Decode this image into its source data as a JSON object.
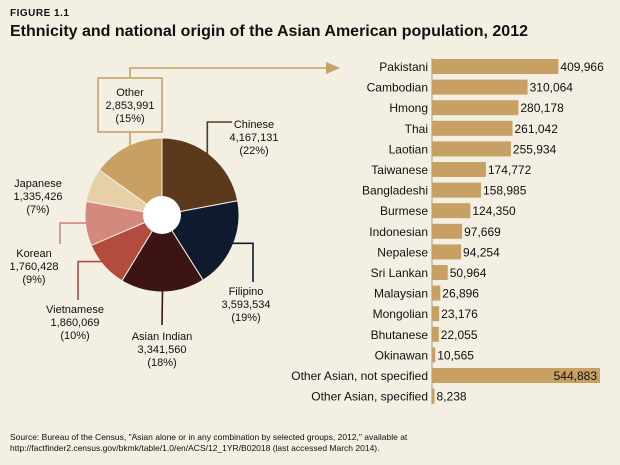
{
  "figure_label": "FIGURE 1.1",
  "title": "Ethnicity and national origin of the Asian American population, 2012",
  "source_lines": [
    "Source: Bureau of the Census, \"Asian alone or in any combination by selected groups, 2012,\" available at",
    "http://factfinder2.census.gov/bkmk/table/1.0/en/ACS/12_1YR/B02018 (last accessed March 2014)."
  ],
  "chart_data": [
    {
      "type": "pie",
      "slices": [
        {
          "name": "Chinese",
          "value": 4167131,
          "value_label": "4,167,131",
          "pct_label": "(22%)",
          "color": "#5a3a1a"
        },
        {
          "name": "Filipino",
          "value": 3593534,
          "value_label": "3,593,534",
          "pct_label": "(19%)",
          "color": "#0f1a2e"
        },
        {
          "name": "Asian Indian",
          "value": 3341560,
          "value_label": "3,341,560",
          "pct_label": "(18%)",
          "color": "#3d1414"
        },
        {
          "name": "Vietnamese",
          "value": 1860069,
          "value_label": "1,860,069",
          "pct_label": "(10%)",
          "color": "#b34b3e"
        },
        {
          "name": "Korean",
          "value": 1760428,
          "value_label": "1,760,428",
          "pct_label": "(9%)",
          "color": "#d4897f"
        },
        {
          "name": "Japanese",
          "value": 1335426,
          "value_label": "1,335,426",
          "pct_label": "(7%)",
          "color": "#e6d0a6"
        },
        {
          "name": "Other",
          "value": 2853991,
          "value_label": "2,853,991",
          "pct_label": "(15%)",
          "color": "#c8a063"
        }
      ]
    },
    {
      "type": "bar",
      "orientation": "horizontal",
      "bar_color": "#c8a063",
      "categories": [
        "Pakistani",
        "Cambodian",
        "Hmong",
        "Thai",
        "Laotian",
        "Taiwanese",
        "Bangladeshi",
        "Burmese",
        "Indonesian",
        "Nepalese",
        "Sri Lankan",
        "Malaysian",
        "Mongolian",
        "Bhutanese",
        "Okinawan",
        "Other Asian, not specified",
        "Other Asian, specified"
      ],
      "values": [
        409966,
        310064,
        280178,
        261042,
        255934,
        174772,
        158985,
        124350,
        97669,
        94254,
        50964,
        26896,
        23176,
        22055,
        10565,
        544883,
        8238
      ],
      "value_labels": [
        "409,966",
        "310,064",
        "280,178",
        "261,042",
        "255,934",
        "174,772",
        "158,985",
        "124,350",
        "97,669",
        "94,254",
        "50,964",
        "26,896",
        "23,176",
        "22,055",
        "10,565",
        "544,883",
        "8,238"
      ]
    }
  ]
}
